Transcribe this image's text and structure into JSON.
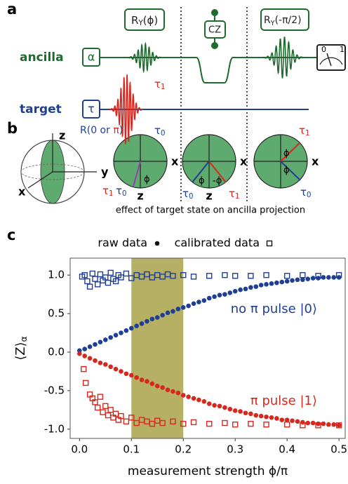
{
  "diagram": {
    "panel_labels": [
      "a",
      "b",
      "c"
    ],
    "circuit": {
      "ancilla": "ancilla",
      "alpha": "α",
      "target": "target",
      "tau": "τ",
      "cz": "CZ",
      "gate1": {
        "base": "R",
        "sub": "Y",
        "arg": "(ϕ)"
      },
      "gate2": {
        "base": "R",
        "sub": "Y",
        "arg": "(-π/2)"
      },
      "tau1": {
        "base": "τ",
        "sub": "1"
      },
      "tau0": {
        "base": "τ",
        "sub": "0"
      },
      "rotation": {
        "pre": "R(0 or ",
        "pi": "π",
        "post": ")"
      },
      "meter": [
        "0",
        "1"
      ]
    },
    "bloch": {
      "z": "z",
      "y": "y",
      "x": "x",
      "phi": "ϕ",
      "minus_phi": "-ϕ",
      "caption": "effect of target state on ancilla projection"
    }
  },
  "chart_data": {
    "type": "scatter",
    "xlabel": "measurement strength ϕ/π",
    "ylabel": {
      "base": "⟨Z⟩",
      "sub": "α"
    },
    "xlim": [
      -0.018,
      0.512
    ],
    "ylim": [
      -1.12,
      1.22
    ],
    "xticks": [
      {
        "value": 0,
        "label": "0.0"
      },
      0.1,
      0.2,
      0.3,
      0.4,
      0.5
    ],
    "yticks": [
      {
        "value": -1,
        "label": "-1.0"
      },
      -0.5,
      {
        "value": 0,
        "label": "0.0"
      },
      0.5,
      {
        "value": 1,
        "label": "1.0"
      }
    ],
    "grid": false,
    "shade": {
      "range": [
        0.1,
        0.2
      ],
      "color": "#a9a24a"
    },
    "legend": [
      {
        "label": "raw data",
        "marker": "circle"
      },
      {
        "label": "calibrated data",
        "marker": "square"
      }
    ],
    "annotations": [
      {
        "text": "no π pulse |0⟩",
        "color": "#1f3f95"
      },
      {
        "text": "π pulse |1⟩",
        "color": "#d7281f"
      }
    ],
    "series": [
      {
        "marker": "circle",
        "color": "#1f3f95",
        "x": [
          0,
          0.01,
          0.02,
          0.03,
          0.04,
          0.05,
          0.06,
          0.07,
          0.08,
          0.09,
          0.1,
          0.11,
          0.12,
          0.13,
          0.14,
          0.15,
          0.16,
          0.17,
          0.18,
          0.19,
          0.2,
          0.21,
          0.22,
          0.23,
          0.24,
          0.25,
          0.26,
          0.27,
          0.28,
          0.29,
          0.3,
          0.31,
          0.32,
          0.33,
          0.34,
          0.35,
          0.36,
          0.37,
          0.38,
          0.39,
          0.4,
          0.41,
          0.42,
          0.43,
          0.44,
          0.45,
          0.46,
          0.47,
          0.48,
          0.49,
          0.5
        ],
        "values": [
          0.02,
          0.04,
          0.07,
          0.1,
          0.13,
          0.16,
          0.19,
          0.22,
          0.25,
          0.28,
          0.31,
          0.34,
          0.37,
          0.4,
          0.43,
          0.45,
          0.48,
          0.51,
          0.53,
          0.56,
          0.58,
          0.6,
          0.63,
          0.65,
          0.67,
          0.7,
          0.72,
          0.74,
          0.75,
          0.77,
          0.79,
          0.81,
          0.82,
          0.84,
          0.85,
          0.87,
          0.88,
          0.89,
          0.9,
          0.91,
          0.92,
          0.93,
          0.94,
          0.94,
          0.95,
          0.96,
          0.96,
          0.97,
          0.97,
          0.97,
          0.97
        ]
      },
      {
        "marker": "circle",
        "color": "#d7281f",
        "x": [
          0,
          0.01,
          0.02,
          0.03,
          0.04,
          0.05,
          0.06,
          0.07,
          0.08,
          0.09,
          0.1,
          0.11,
          0.12,
          0.13,
          0.14,
          0.15,
          0.16,
          0.17,
          0.18,
          0.19,
          0.2,
          0.21,
          0.22,
          0.23,
          0.24,
          0.25,
          0.26,
          0.27,
          0.28,
          0.29,
          0.3,
          0.31,
          0.32,
          0.33,
          0.34,
          0.35,
          0.36,
          0.37,
          0.38,
          0.39,
          0.4,
          0.41,
          0.42,
          0.43,
          0.44,
          0.45,
          0.46,
          0.47,
          0.48,
          0.49,
          0.5
        ],
        "values": [
          -0.02,
          -0.05,
          -0.08,
          -0.11,
          -0.14,
          -0.16,
          -0.19,
          -0.22,
          -0.25,
          -0.28,
          -0.3,
          -0.33,
          -0.36,
          -0.38,
          -0.41,
          -0.44,
          -0.46,
          -0.49,
          -0.51,
          -0.53,
          -0.56,
          -0.58,
          -0.6,
          -0.62,
          -0.64,
          -0.67,
          -0.69,
          -0.7,
          -0.72,
          -0.74,
          -0.76,
          -0.77,
          -0.79,
          -0.8,
          -0.82,
          -0.83,
          -0.84,
          -0.85,
          -0.86,
          -0.88,
          -0.88,
          -0.89,
          -0.9,
          -0.91,
          -0.92,
          -0.92,
          -0.93,
          -0.93,
          -0.94,
          -0.94,
          -0.95
        ]
      },
      {
        "marker": "square",
        "color": "#1f3f95",
        "x": [
          0.005,
          0.01,
          0.015,
          0.02,
          0.025,
          0.03,
          0.035,
          0.04,
          0.045,
          0.05,
          0.055,
          0.06,
          0.065,
          0.07,
          0.075,
          0.08,
          0.09,
          0.1,
          0.11,
          0.12,
          0.13,
          0.14,
          0.15,
          0.16,
          0.17,
          0.18,
          0.2,
          0.22,
          0.25,
          0.28,
          0.3,
          0.33,
          0.36,
          0.4,
          0.43,
          0.46,
          0.5
        ],
        "values": [
          0.98,
          1.0,
          0.92,
          0.85,
          1.02,
          0.95,
          0.88,
          1.01,
          0.93,
          0.97,
          0.9,
          1.03,
          0.95,
          0.92,
          1.0,
          0.97,
          1.02,
          0.96,
          1.0,
          0.98,
          1.01,
          0.97,
          1.0,
          0.98,
          1.01,
          0.99,
          1.0,
          0.98,
          0.99,
          1.0,
          0.99,
          0.99,
          1.0,
          0.99,
          1.0,
          0.99,
          1.0
        ]
      },
      {
        "marker": "square",
        "color": "#d7281f",
        "x": [
          0.008,
          0.012,
          0.02,
          0.025,
          0.03,
          0.035,
          0.04,
          0.045,
          0.05,
          0.055,
          0.06,
          0.065,
          0.07,
          0.075,
          0.08,
          0.09,
          0.1,
          0.11,
          0.12,
          0.13,
          0.14,
          0.15,
          0.16,
          0.18,
          0.2,
          0.22,
          0.25,
          0.28,
          0.3,
          0.33,
          0.36,
          0.4,
          0.43,
          0.46,
          0.5
        ],
        "values": [
          -0.22,
          -0.4,
          -0.55,
          -0.6,
          -0.65,
          -0.72,
          -0.58,
          -0.78,
          -0.7,
          -0.82,
          -0.75,
          -0.85,
          -0.8,
          -0.88,
          -0.83,
          -0.9,
          -0.85,
          -0.92,
          -0.88,
          -0.9,
          -0.93,
          -0.89,
          -0.92,
          -0.9,
          -0.93,
          -0.91,
          -0.93,
          -0.92,
          -0.94,
          -0.93,
          -0.94,
          -0.94,
          -0.95,
          -0.95,
          -0.95
        ]
      }
    ]
  }
}
